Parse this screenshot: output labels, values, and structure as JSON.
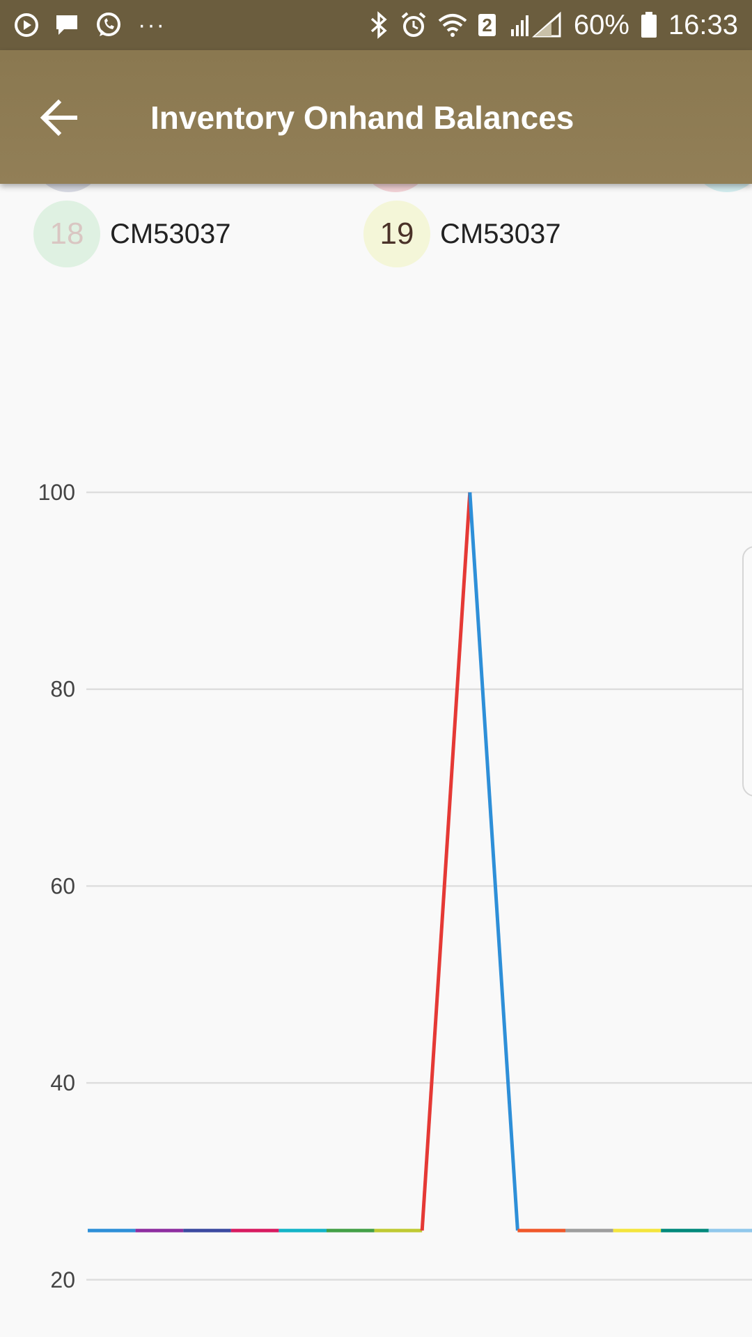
{
  "status_bar": {
    "time": "16:33",
    "battery": "60%",
    "sim_badge": "2",
    "more": "···",
    "left_icons": [
      "play-icon",
      "message-icon",
      "whatsapp-icon"
    ],
    "right_icons": [
      "bluetooth-icon",
      "alarm-icon",
      "wifi-icon",
      "signal-icon",
      "battery-icon"
    ]
  },
  "app_bar": {
    "title": "Inventory Onhand Balances",
    "back_icon": "arrow-left-icon"
  },
  "legend": [
    {
      "number": "18",
      "label": "CM53037",
      "circle_color": "#dff1e2",
      "text_color": "#d9c6c2"
    },
    {
      "number": "19",
      "label": "CM53037",
      "circle_color": "#f4f6d8",
      "text_color": "#4a3228"
    }
  ],
  "chart_data": {
    "type": "line",
    "x": [
      0,
      1,
      2,
      3,
      4,
      5,
      6,
      7,
      8,
      9,
      10,
      11,
      12,
      13,
      14
    ],
    "y_ticks": [
      "100",
      "80",
      "60",
      "40",
      "20"
    ],
    "ylim": [
      20,
      100
    ],
    "grid": true,
    "series": [
      {
        "color": "#2e8fd8",
        "x": [
          0,
          1
        ],
        "values": [
          25,
          25
        ]
      },
      {
        "color": "#8e2ea0",
        "x": [
          1,
          2
        ],
        "values": [
          25,
          25
        ]
      },
      {
        "color": "#3b4aa0",
        "x": [
          2,
          3
        ],
        "values": [
          25,
          25
        ]
      },
      {
        "color": "#d81b60",
        "x": [
          3,
          4
        ],
        "values": [
          25,
          25
        ]
      },
      {
        "color": "#14b4c8",
        "x": [
          4,
          5
        ],
        "values": [
          25,
          25
        ]
      },
      {
        "color": "#43a047",
        "x": [
          5,
          6
        ],
        "values": [
          25,
          25
        ]
      },
      {
        "color": "#c0ca33",
        "x": [
          6,
          7
        ],
        "values": [
          25,
          25
        ]
      },
      {
        "color": "#e53935",
        "x": [
          7,
          8
        ],
        "values": [
          25,
          100
        ]
      },
      {
        "color": "#2e8fd8",
        "x": [
          8,
          9
        ],
        "values": [
          100,
          25
        ]
      },
      {
        "color": "#f0582a",
        "x": [
          9,
          10
        ],
        "values": [
          25,
          25
        ]
      },
      {
        "color": "#9e9e9e",
        "x": [
          10,
          11
        ],
        "values": [
          25,
          25
        ]
      },
      {
        "color": "#f4e53c",
        "x": [
          11,
          12
        ],
        "values": [
          25,
          25
        ]
      },
      {
        "color": "#00897b",
        "x": [
          12,
          13
        ],
        "values": [
          25,
          25
        ]
      },
      {
        "color": "#90c8ec",
        "x": [
          13,
          14
        ],
        "values": [
          25,
          25
        ]
      }
    ]
  }
}
